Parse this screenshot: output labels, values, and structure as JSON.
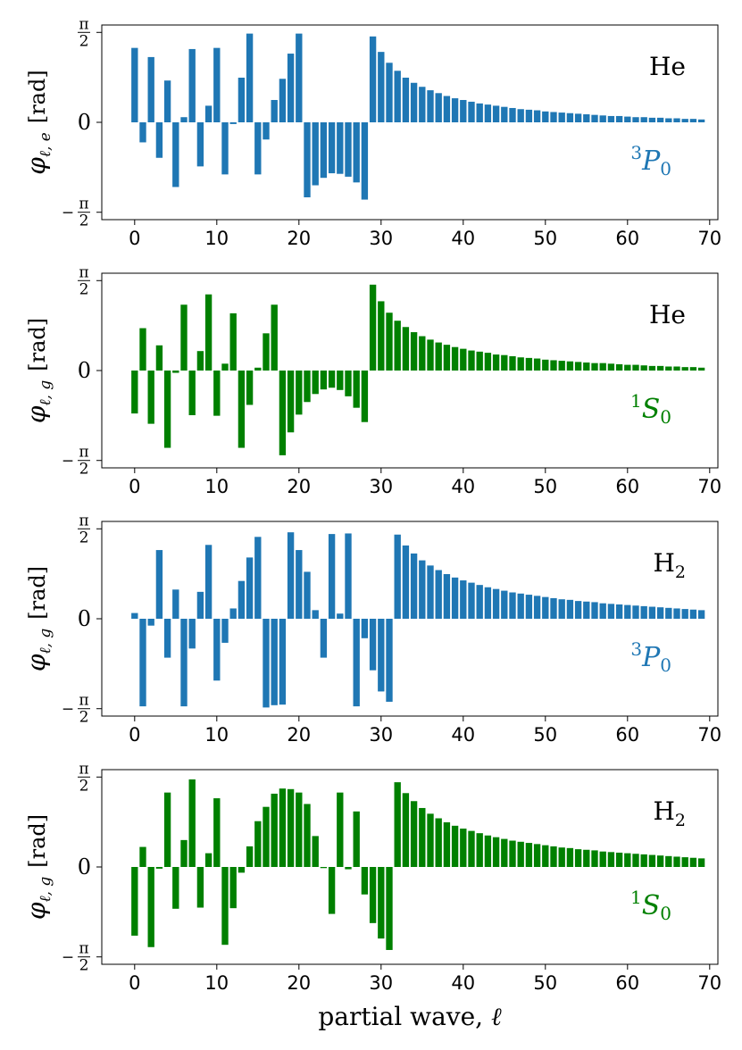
{
  "chart_data": [
    {
      "type": "bar",
      "panel_label": "He",
      "state": {
        "sup": "3",
        "letter": "P",
        "sub": "0"
      },
      "ylabel": {
        "phi": "φ",
        "sub": "ℓ, e",
        "unit": "[rad]"
      },
      "color": "#1f77b4",
      "xlim": [
        -4,
        71
      ],
      "ylim": [
        -1.7,
        1.7
      ],
      "xticks": [
        0,
        10,
        20,
        30,
        40,
        50,
        60,
        70
      ],
      "yticks": {
        "top": "π/2",
        "zero": "0",
        "bottom": "−π/2"
      },
      "values": [
        1.3,
        -0.35,
        1.14,
        -0.62,
        0.73,
        -1.13,
        0.09,
        1.28,
        -0.77,
        0.29,
        1.3,
        -0.91,
        -0.03,
        0.78,
        1.55,
        -0.91,
        -0.3,
        0.39,
        0.76,
        1.2,
        1.55,
        -1.31,
        -1.1,
        -0.97,
        -0.89,
        -0.9,
        -0.95,
        -1.05,
        -1.35,
        1.5,
        1.23,
        1.04,
        0.9,
        0.78,
        0.69,
        0.62,
        0.56,
        0.51,
        0.46,
        0.42,
        0.39,
        0.36,
        0.33,
        0.31,
        0.29,
        0.27,
        0.25,
        0.23,
        0.22,
        0.21,
        0.19,
        0.18,
        0.17,
        0.16,
        0.15,
        0.14,
        0.13,
        0.12,
        0.11,
        0.11,
        0.1,
        0.09,
        0.09,
        0.08,
        0.08,
        0.07,
        0.07,
        0.06,
        0.06,
        0.05
      ]
    },
    {
      "type": "bar",
      "panel_label": "He",
      "state": {
        "sup": "1",
        "letter": "S",
        "sub": "0"
      },
      "ylabel": {
        "phi": "φ",
        "sub": "ℓ, g",
        "unit": "[rad]"
      },
      "color": "#008000",
      "xlim": [
        -4,
        71
      ],
      "ylim": [
        -1.7,
        1.7
      ],
      "xticks": [
        0,
        10,
        20,
        30,
        40,
        50,
        60,
        70
      ],
      "yticks": {
        "top": "π/2",
        "zero": "0",
        "bottom": "−π/2"
      },
      "values": [
        -0.75,
        0.74,
        -0.93,
        0.44,
        -1.35,
        -0.04,
        1.15,
        -0.78,
        0.34,
        1.33,
        -0.79,
        0.12,
        1.0,
        -1.35,
        -0.6,
        0.05,
        0.65,
        1.15,
        -1.48,
        -1.08,
        -0.77,
        -0.55,
        -0.41,
        -0.33,
        -0.3,
        -0.34,
        -0.45,
        -0.65,
        -0.9,
        1.5,
        1.21,
        1.01,
        0.87,
        0.76,
        0.67,
        0.6,
        0.54,
        0.49,
        0.45,
        0.41,
        0.38,
        0.35,
        0.33,
        0.31,
        0.28,
        0.27,
        0.25,
        0.23,
        0.22,
        0.21,
        0.19,
        0.18,
        0.17,
        0.16,
        0.15,
        0.14,
        0.13,
        0.13,
        0.12,
        0.11,
        0.1,
        0.1,
        0.09,
        0.08,
        0.08,
        0.07,
        0.07,
        0.06,
        0.06,
        0.05
      ]
    },
    {
      "type": "bar",
      "panel_label": "H",
      "panel_label_sub": "2",
      "state": {
        "sup": "3",
        "letter": "P",
        "sub": "0"
      },
      "ylabel": {
        "phi": "φ",
        "sub": "ℓ, g",
        "unit": "[rad]"
      },
      "color": "#1f77b4",
      "xlim": [
        -4,
        71
      ],
      "ylim": [
        -1.7,
        1.7
      ],
      "xticks": [
        0,
        10,
        20,
        30,
        40,
        50,
        60,
        70
      ],
      "yticks": {
        "top": "π/2",
        "zero": "0",
        "bottom": "−π/2"
      },
      "values": [
        0.1,
        -1.53,
        -0.12,
        1.2,
        -0.68,
        0.51,
        -1.53,
        -0.52,
        0.47,
        1.29,
        -1.08,
        -0.42,
        0.18,
        0.66,
        1.07,
        1.43,
        -1.55,
        -1.51,
        -1.5,
        1.51,
        1.2,
        0.82,
        0.15,
        -0.68,
        1.48,
        0.09,
        1.49,
        -1.53,
        -0.34,
        -0.9,
        -1.27,
        -1.45,
        1.47,
        1.28,
        1.14,
        1.02,
        0.93,
        0.85,
        0.78,
        0.72,
        0.67,
        0.63,
        0.59,
        0.55,
        0.52,
        0.49,
        0.46,
        0.44,
        0.42,
        0.4,
        0.38,
        0.36,
        0.34,
        0.33,
        0.31,
        0.3,
        0.29,
        0.27,
        0.26,
        0.25,
        0.24,
        0.23,
        0.22,
        0.21,
        0.2,
        0.19,
        0.18,
        0.17,
        0.16,
        0.15
      ]
    },
    {
      "type": "bar",
      "panel_label": "H",
      "panel_label_sub": "2",
      "state": {
        "sup": "1",
        "letter": "S",
        "sub": "0"
      },
      "ylabel": {
        "phi": "φ",
        "sub": "ℓ, g",
        "unit": "[rad]"
      },
      "color": "#008000",
      "xlim": [
        -4,
        71
      ],
      "ylim": [
        -1.7,
        1.7
      ],
      "xticks": [
        0,
        10,
        20,
        30,
        40,
        50,
        60,
        70
      ],
      "yticks": {
        "top": "π/2",
        "zero": "0",
        "bottom": "−π/2"
      },
      "values": [
        -1.2,
        0.35,
        -1.4,
        -0.03,
        1.3,
        -0.73,
        0.47,
        1.53,
        -0.71,
        0.24,
        1.2,
        -1.36,
        -0.72,
        -0.1,
        0.36,
        0.8,
        1.05,
        1.28,
        1.37,
        1.36,
        1.3,
        1.1,
        0.54,
        -0.02,
        -0.82,
        1.3,
        -0.04,
        0.97,
        -0.48,
        -0.98,
        -1.25,
        -1.45,
        1.48,
        1.29,
        1.15,
        1.03,
        0.93,
        0.85,
        0.78,
        0.72,
        0.67,
        0.63,
        0.59,
        0.55,
        0.52,
        0.49,
        0.46,
        0.44,
        0.42,
        0.4,
        0.38,
        0.36,
        0.34,
        0.33,
        0.31,
        0.3,
        0.29,
        0.27,
        0.26,
        0.25,
        0.24,
        0.23,
        0.22,
        0.21,
        0.2,
        0.19,
        0.18,
        0.17,
        0.16,
        0.15
      ]
    }
  ],
  "xlabel": {
    "text": "partial wave, ",
    "ell": "ℓ"
  }
}
